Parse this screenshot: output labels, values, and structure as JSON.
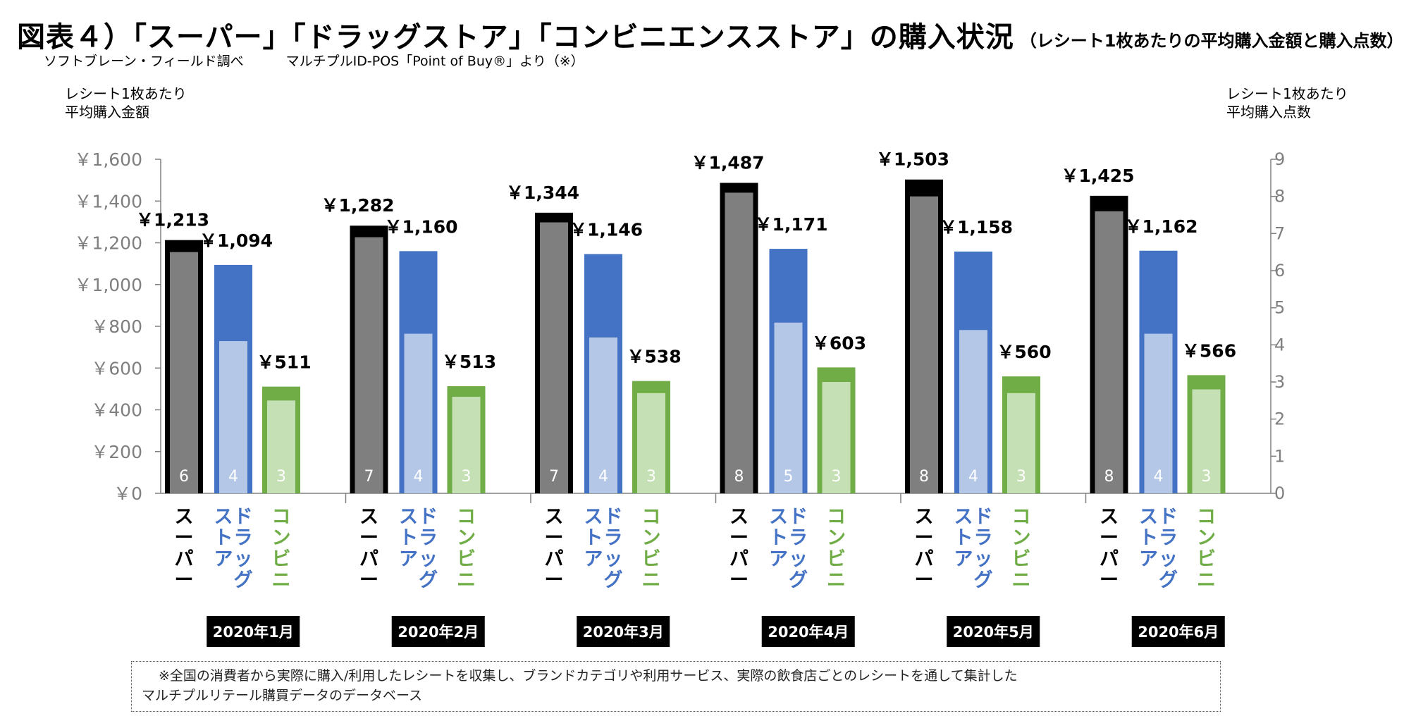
{
  "title": "図表４）「スーパー」「ドラッグストア」「コンビニエンスストア」の購入状況",
  "subtitle": "（レシート1枚あたりの平均購入金額と購入点数）",
  "source_left": "ソフトブレーン・フィールド調べ",
  "source_right": "マルチプルID-POS「Point of Buy®」より（※）",
  "left_axis_title_line1": "レシート1枚あたり",
  "left_axis_title_line2": "平均購入金額",
  "right_axis_title_line1": "レシート1枚あたり",
  "right_axis_title_line2": "平均購入点数",
  "note_line1": "※全国の消費者から実際に購入/利用したレシートを収集し、ブランドカテゴリや利用サービス、実際の飲食店ごとのレシートを通して集計した",
  "note_line2": "マルチプルリテール購買データのデータベース",
  "colors": {
    "super_amount": "#000000",
    "super_count": "#7f7f7f",
    "drug_amount": "#4472c4",
    "drug_count": "#b4c7e7",
    "conv_amount": "#70ad47",
    "conv_count": "#c5e0b4",
    "period_box": "#000000"
  },
  "chart_data": {
    "type": "bar",
    "categories": [
      "2020年1月",
      "2020年2月",
      "2020年3月",
      "2020年4月",
      "2020年5月",
      "2020年6月"
    ],
    "store_labels": [
      "スーパー",
      "ドラッグストア",
      "コンビニ"
    ],
    "store_label_lines": [
      [
        "スーパー"
      ],
      [
        "ドラッグ",
        "ストア"
      ],
      [
        "コンビニ"
      ]
    ],
    "left_axis": {
      "ylim": [
        0,
        1600
      ],
      "ticks": [
        0,
        200,
        400,
        600,
        800,
        1000,
        1200,
        1400,
        1600
      ],
      "tick_labels": [
        "￥0",
        "￥200",
        "￥400",
        "￥600",
        "￥800",
        "￥1,000",
        "￥1,200",
        "￥1,400",
        "￥1,600"
      ]
    },
    "right_axis": {
      "ylim": [
        0,
        9
      ],
      "ticks": [
        0,
        1,
        2,
        3,
        4,
        5,
        6,
        7,
        8,
        9
      ],
      "tick_labels": [
        "0",
        "1",
        "2",
        "3",
        "4",
        "5",
        "6",
        "7",
        "8",
        "9"
      ]
    },
    "series": [
      {
        "name": "平均購入金額",
        "axis": "left",
        "store_values": [
          [
            1213,
            1094,
            511
          ],
          [
            1282,
            1160,
            513
          ],
          [
            1344,
            1146,
            538
          ],
          [
            1487,
            1171,
            603
          ],
          [
            1503,
            1158,
            560
          ],
          [
            1425,
            1162,
            566
          ]
        ],
        "store_labels_text": [
          [
            "￥1,213",
            "￥1,094",
            "￥511"
          ],
          [
            "￥1,282",
            "￥1,160",
            "￥513"
          ],
          [
            "￥1,344",
            "￥1,146",
            "￥538"
          ],
          [
            "￥1,487",
            "￥1,171",
            "￥603"
          ],
          [
            "￥1,503",
            "￥1,158",
            "￥560"
          ],
          [
            "￥1,425",
            "￥1,162",
            "￥566"
          ]
        ]
      },
      {
        "name": "平均購入点数",
        "axis": "right",
        "store_values": [
          [
            6.5,
            4.1,
            2.5
          ],
          [
            6.9,
            4.3,
            2.6
          ],
          [
            7.3,
            4.2,
            2.7
          ],
          [
            8.1,
            4.6,
            3.0
          ],
          [
            8.0,
            4.4,
            2.7
          ],
          [
            7.6,
            4.3,
            2.8
          ]
        ],
        "store_labels_text": [
          [
            "6",
            "4",
            "3"
          ],
          [
            "7",
            "4",
            "3"
          ],
          [
            "7",
            "4",
            "3"
          ],
          [
            "8",
            "5",
            "3"
          ],
          [
            "8",
            "4",
            "3"
          ],
          [
            "8",
            "4",
            "3"
          ]
        ]
      }
    ]
  }
}
